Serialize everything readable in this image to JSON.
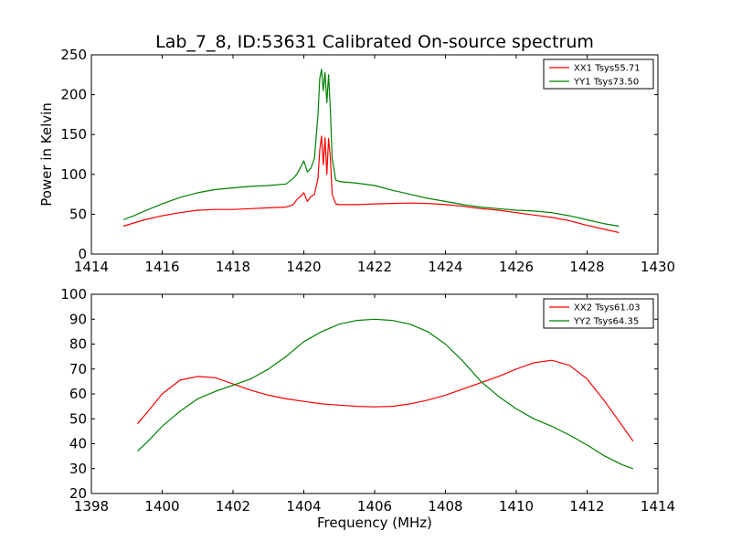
{
  "figure": {
    "title": "Lab_7_8, ID:53631 Calibrated On-source spectrum"
  },
  "chart_data": [
    {
      "type": "line",
      "title": "Lab_7_8, ID:53631 Calibrated On-source spectrum",
      "xlabel": "",
      "ylabel": "Power in Kelvin",
      "xlim": [
        1414,
        1430
      ],
      "ylim": [
        0,
        250
      ],
      "xticks": [
        1414,
        1416,
        1418,
        1420,
        1422,
        1424,
        1426,
        1428,
        1430
      ],
      "yticks": [
        0,
        50,
        100,
        150,
        200,
        250
      ],
      "grid": false,
      "legend": "top-right",
      "series": [
        {
          "name": "XX1 Tsys55.71",
          "color": "#ff0000",
          "x": [
            1414.9,
            1415.2,
            1415.5,
            1416.0,
            1416.5,
            1417.0,
            1417.5,
            1418.0,
            1418.5,
            1419.0,
            1419.5,
            1419.7,
            1419.8,
            1419.9,
            1420.0,
            1420.1,
            1420.2,
            1420.3,
            1420.4,
            1420.45,
            1420.5,
            1420.55,
            1420.6,
            1420.65,
            1420.7,
            1420.75,
            1420.8,
            1420.9,
            1421.0,
            1421.5,
            1422.0,
            1422.5,
            1423.0,
            1423.5,
            1424.0,
            1424.5,
            1425.0,
            1425.5,
            1426.0,
            1426.5,
            1427.0,
            1427.5,
            1428.0,
            1428.5,
            1428.9
          ],
          "y": [
            35,
            39,
            43,
            48,
            52,
            55,
            56,
            56,
            57,
            58,
            59,
            62,
            68,
            72,
            77,
            66,
            72,
            75,
            95,
            130,
            148,
            112,
            146,
            100,
            145,
            120,
            75,
            63,
            62,
            62,
            63,
            63.5,
            64,
            63.5,
            62,
            60,
            57,
            55,
            52,
            49,
            46,
            42,
            36,
            31,
            27
          ]
        },
        {
          "name": "YY1 Tsys73.50",
          "color": "#008000",
          "x": [
            1414.9,
            1415.2,
            1415.5,
            1416.0,
            1416.5,
            1417.0,
            1417.5,
            1418.0,
            1418.5,
            1419.0,
            1419.5,
            1419.7,
            1419.8,
            1419.9,
            1420.0,
            1420.1,
            1420.2,
            1420.3,
            1420.4,
            1420.45,
            1420.5,
            1420.55,
            1420.6,
            1420.65,
            1420.7,
            1420.75,
            1420.8,
            1420.9,
            1421.0,
            1421.5,
            1422.0,
            1422.5,
            1423.0,
            1423.5,
            1424.0,
            1424.5,
            1425.0,
            1425.5,
            1426.0,
            1426.5,
            1427.0,
            1427.5,
            1428.0,
            1428.5,
            1428.9
          ],
          "y": [
            43,
            48,
            54,
            63,
            71,
            77,
            81,
            83,
            85,
            86,
            88,
            95,
            100,
            108,
            117,
            103,
            108,
            120,
            175,
            220,
            232,
            205,
            228,
            190,
            225,
            180,
            120,
            93,
            91,
            89,
            86,
            80,
            75,
            70,
            66,
            62,
            59,
            57,
            55,
            54,
            52,
            48,
            43,
            38,
            35
          ]
        }
      ]
    },
    {
      "type": "line",
      "title": "",
      "xlabel": "Frequency (MHz)",
      "ylabel": "",
      "xlim": [
        1398,
        1414
      ],
      "ylim": [
        20,
        100
      ],
      "xticks": [
        1398,
        1400,
        1402,
        1404,
        1406,
        1408,
        1410,
        1412,
        1414
      ],
      "yticks": [
        20,
        30,
        40,
        50,
        60,
        70,
        80,
        90,
        100
      ],
      "grid": false,
      "legend": "top-right",
      "series": [
        {
          "name": "XX2 Tsys61.03",
          "color": "#ff0000",
          "x": [
            1399.3,
            1399.6,
            1400.0,
            1400.5,
            1401.0,
            1401.5,
            1402.0,
            1402.5,
            1403.0,
            1403.5,
            1404.0,
            1404.5,
            1405.0,
            1405.5,
            1406.0,
            1406.5,
            1407.0,
            1407.5,
            1408.0,
            1408.5,
            1409.0,
            1409.5,
            1410.0,
            1410.5,
            1411.0,
            1411.5,
            1412.0,
            1412.5,
            1413.0,
            1413.3
          ],
          "y": [
            48,
            53,
            60,
            65.5,
            67,
            66.5,
            64,
            61.5,
            59.5,
            58,
            57,
            56,
            55.5,
            55,
            54.8,
            55,
            56,
            57.5,
            59.5,
            62,
            64.5,
            67,
            70,
            72.5,
            73.5,
            71.5,
            66,
            57,
            47,
            41
          ]
        },
        {
          "name": "YY2 Tsys64.35",
          "color": "#008000",
          "x": [
            1399.3,
            1399.6,
            1400.0,
            1400.5,
            1401.0,
            1401.5,
            1402.0,
            1402.5,
            1403.0,
            1403.5,
            1404.0,
            1404.5,
            1405.0,
            1405.5,
            1406.0,
            1406.5,
            1407.0,
            1407.5,
            1408.0,
            1408.5,
            1409.0,
            1409.5,
            1410.0,
            1410.5,
            1411.0,
            1411.5,
            1412.0,
            1412.5,
            1413.0,
            1413.3
          ],
          "y": [
            37,
            41,
            47,
            53,
            58,
            61,
            63.5,
            66,
            70,
            75,
            81,
            85,
            88,
            89.5,
            90,
            89.5,
            88,
            85,
            80,
            73,
            65,
            59,
            54,
            50,
            47,
            43.5,
            39.5,
            35,
            31.5,
            30
          ]
        }
      ]
    }
  ]
}
